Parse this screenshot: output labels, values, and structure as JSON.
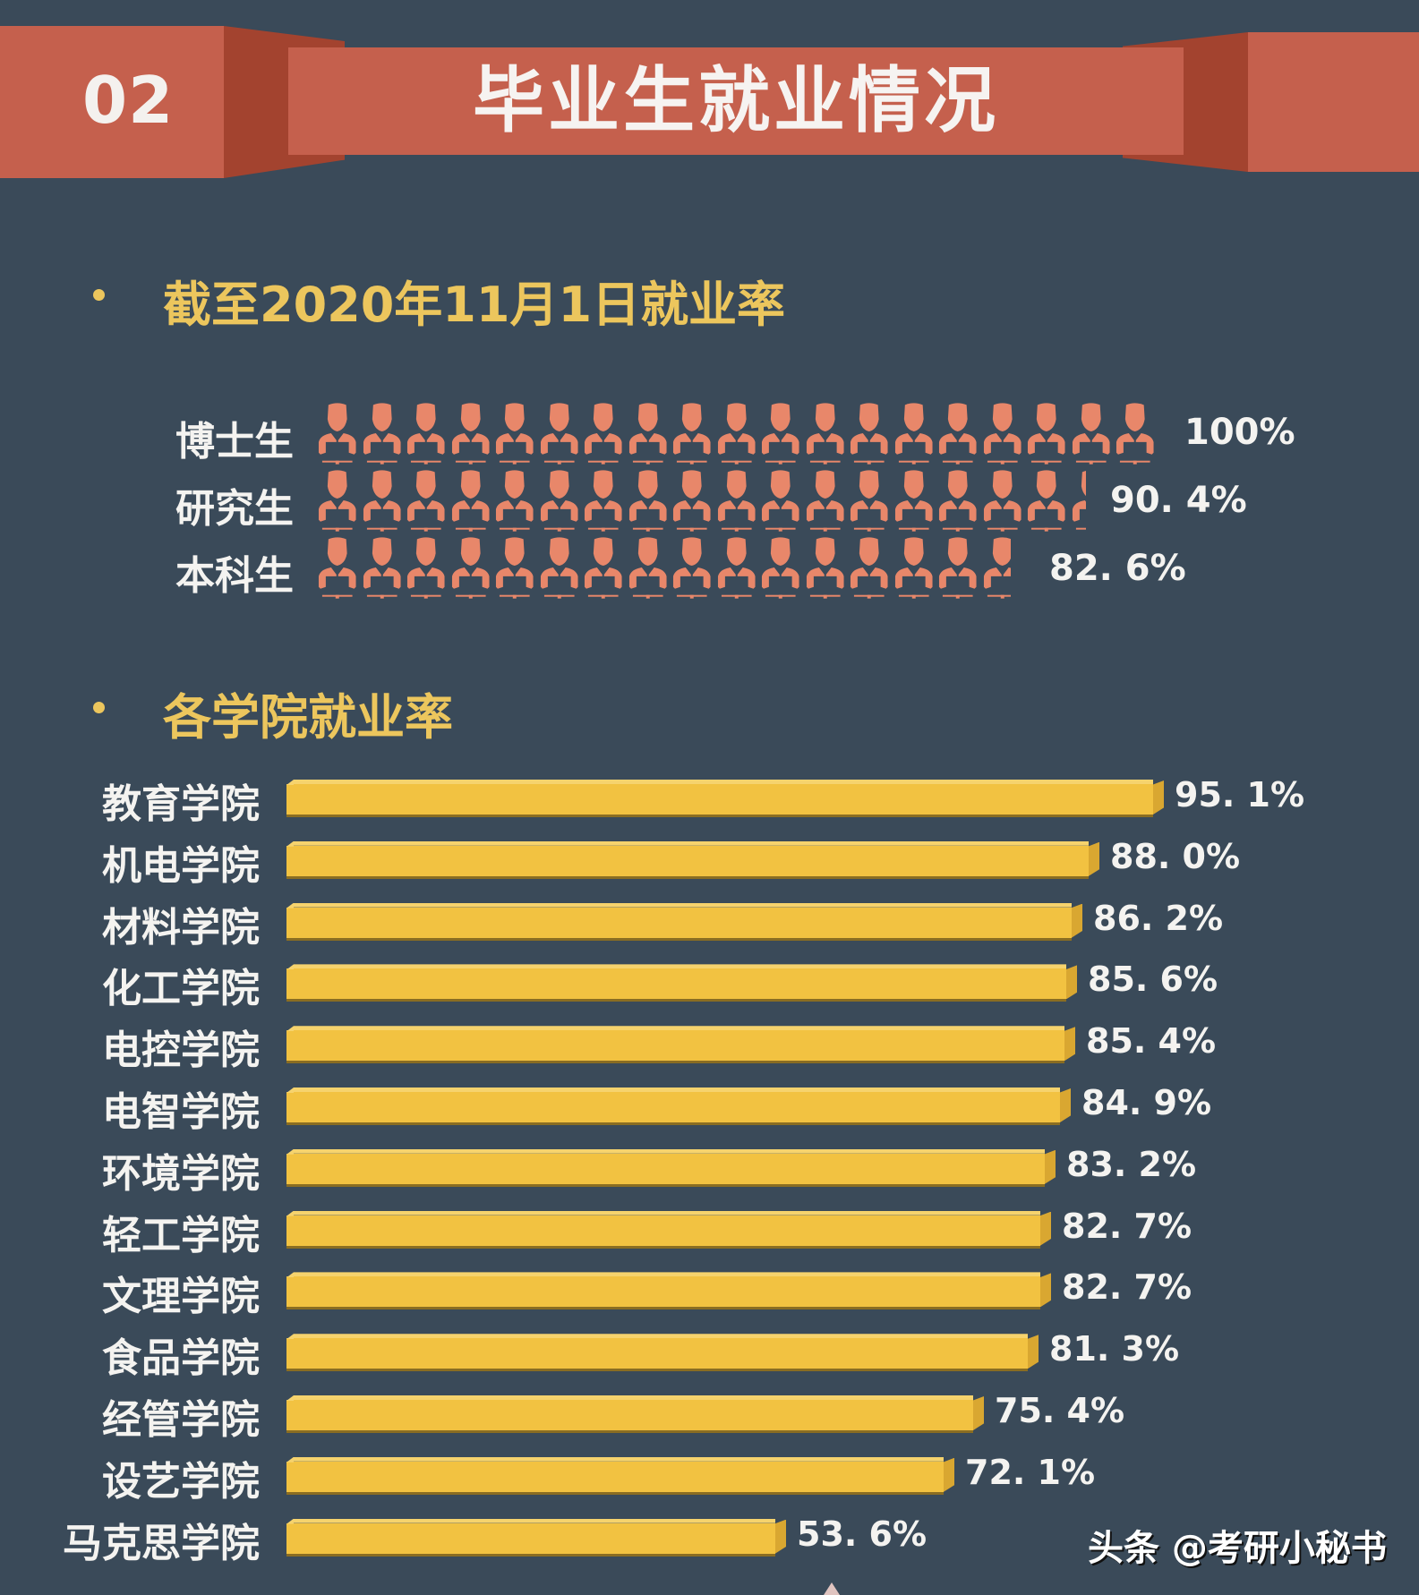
{
  "banner": {
    "number": "02",
    "title": "毕业生就业情况"
  },
  "section1": {
    "title": "截至2020年11月1日就业率",
    "rows": [
      {
        "label": "博士生",
        "value": "100%",
        "icons": 19
      },
      {
        "label": "研究生",
        "value": "90. 4%",
        "icons": 17.4
      },
      {
        "label": "本科生",
        "value": "82. 6%",
        "icons": 15.7
      }
    ]
  },
  "section2": {
    "title": "各学院就业率",
    "rows": [
      {
        "label": "教育学院",
        "value": "95. 1%",
        "num": 95.1
      },
      {
        "label": "机电学院",
        "value": "88. 0%",
        "num": 88.0
      },
      {
        "label": "材料学院",
        "value": "86. 2%",
        "num": 86.2
      },
      {
        "label": "化工学院",
        "value": "85. 6%",
        "num": 85.6
      },
      {
        "label": "电控学院",
        "value": "85. 4%",
        "num": 85.4
      },
      {
        "label": "电智学院",
        "value": "84. 9%",
        "num": 84.9
      },
      {
        "label": "环境学院",
        "value": "83. 2%",
        "num": 83.2
      },
      {
        "label": "轻工学院",
        "value": "82. 7%",
        "num": 82.7
      },
      {
        "label": "文理学院",
        "value": "82. 7%",
        "num": 82.7
      },
      {
        "label": "食品学院",
        "value": "81. 3%",
        "num": 81.3
      },
      {
        "label": "经管学院",
        "value": "75. 4%",
        "num": 75.4
      },
      {
        "label": "设艺学院",
        "value": "72. 1%",
        "num": 72.1
      },
      {
        "label": "马克思学院",
        "value": "53. 6%",
        "num": 53.6
      }
    ]
  },
  "watermark": "头条 @考研小秘书",
  "colors": {
    "background": "#3a4a59",
    "banner": "#c5604d",
    "banner_shadow": "#a3432f",
    "heading": "#ecc65d",
    "person_icon": "#e8876a",
    "bar": "#f2c241"
  },
  "chart_data": [
    {
      "type": "bar",
      "title": "截至2020年11月1日就业率",
      "orientation": "horizontal",
      "style": "pictogram",
      "categories": [
        "博士生",
        "研究生",
        "本科生"
      ],
      "values": [
        100,
        90.4,
        82.6
      ],
      "unit": "%"
    },
    {
      "type": "bar",
      "title": "各学院就业率",
      "orientation": "horizontal",
      "categories": [
        "教育学院",
        "机电学院",
        "材料学院",
        "化工学院",
        "电控学院",
        "电智学院",
        "环境学院",
        "轻工学院",
        "文理学院",
        "食品学院",
        "经管学院",
        "设艺学院",
        "马克思学院"
      ],
      "values": [
        95.1,
        88.0,
        86.2,
        85.6,
        85.4,
        84.9,
        83.2,
        82.7,
        82.7,
        81.3,
        75.4,
        72.1,
        53.6
      ],
      "unit": "%",
      "xlabel": "",
      "ylabel": "",
      "grid": false,
      "data_labels": true
    }
  ]
}
